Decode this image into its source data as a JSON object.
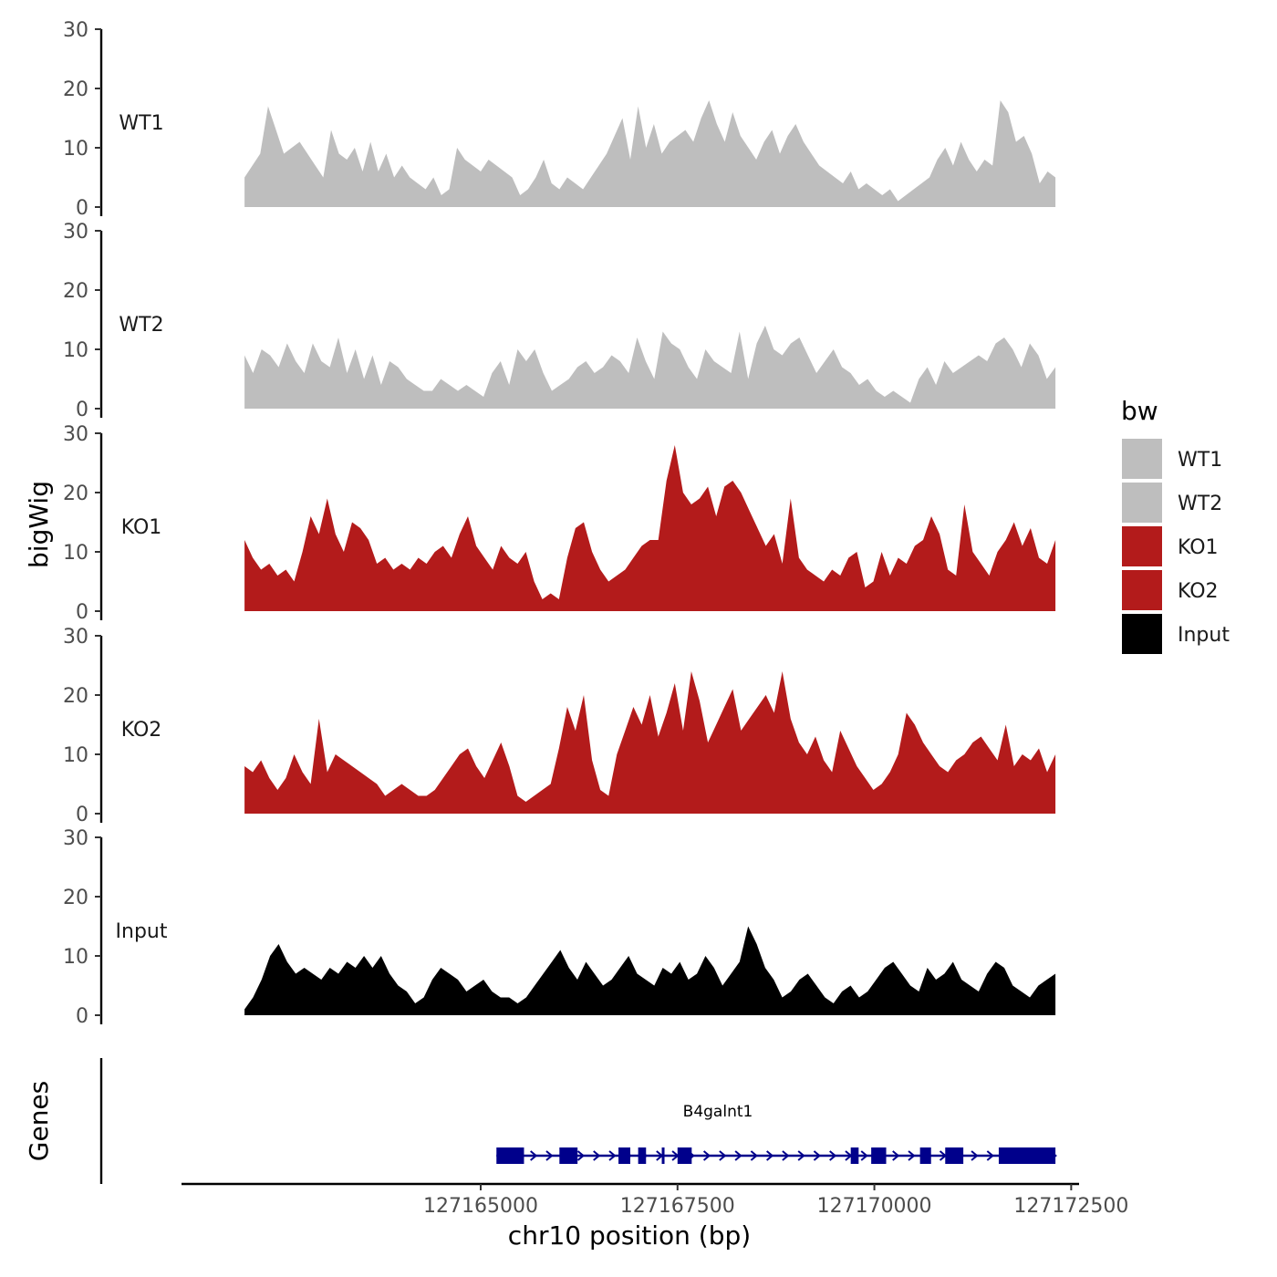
{
  "chart_data": {
    "type": "area",
    "title": "",
    "ylabel": "bigWig",
    "xlabel": "chr10 position (bp)",
    "xlim": [
      127161200,
      127172600
    ],
    "data_range": [
      127162000,
      127172300
    ],
    "ylim": [
      0,
      30
    ],
    "y_ticks": [
      "0",
      "10",
      "20",
      "30"
    ],
    "x_ticks": [
      {
        "value": 127165000,
        "label": "127165000"
      },
      {
        "value": 127167500,
        "label": "127167500"
      },
      {
        "value": 127170000,
        "label": "127170000"
      },
      {
        "value": 127172500,
        "label": "127172500"
      }
    ],
    "series": [
      {
        "name": "WT1",
        "color": "#bebebe",
        "values": [
          5,
          7,
          9,
          17,
          13,
          9,
          10,
          11,
          9,
          7,
          5,
          13,
          9,
          8,
          10,
          6,
          11,
          6,
          9,
          5,
          7,
          5,
          4,
          3,
          5,
          2,
          3,
          10,
          8,
          7,
          6,
          8,
          7,
          6,
          5,
          2,
          3,
          5,
          8,
          4,
          3,
          5,
          4,
          3,
          5,
          7,
          9,
          12,
          15,
          8,
          17,
          10,
          14,
          9,
          11,
          12,
          13,
          11,
          15,
          18,
          14,
          11,
          16,
          12,
          10,
          8,
          11,
          13,
          9,
          12,
          14,
          11,
          9,
          7,
          6,
          5,
          4,
          6,
          3,
          4,
          3,
          2,
          3,
          1,
          2,
          3,
          4,
          5,
          8,
          10,
          7,
          11,
          8,
          6,
          8,
          7,
          18,
          16,
          11,
          12,
          9,
          4,
          6,
          5
        ],
        "label": "WT1"
      },
      {
        "name": "WT2",
        "color": "#bebebe",
        "values": [
          9,
          6,
          10,
          9,
          7,
          11,
          8,
          6,
          11,
          8,
          7,
          12,
          6,
          10,
          5,
          9,
          4,
          8,
          7,
          5,
          4,
          3,
          3,
          5,
          4,
          3,
          4,
          3,
          2,
          6,
          8,
          4,
          10,
          8,
          10,
          6,
          3,
          4,
          5,
          7,
          8,
          6,
          7,
          9,
          8,
          6,
          12,
          8,
          5,
          13,
          11,
          10,
          7,
          5,
          10,
          8,
          7,
          6,
          13,
          5,
          11,
          14,
          10,
          9,
          11,
          12,
          9,
          6,
          8,
          10,
          7,
          6,
          4,
          5,
          3,
          2,
          3,
          2,
          1,
          5,
          7,
          4,
          8,
          6,
          7,
          8,
          9,
          8,
          11,
          12,
          10,
          7,
          11,
          9,
          5,
          7
        ],
        "label": "WT2"
      },
      {
        "name": "KO1",
        "color": "#b31b1b",
        "values": [
          12,
          9,
          7,
          8,
          6,
          7,
          5,
          10,
          16,
          13,
          19,
          13,
          10,
          15,
          14,
          12,
          8,
          9,
          7,
          8,
          7,
          9,
          8,
          10,
          11,
          9,
          13,
          16,
          11,
          9,
          7,
          11,
          9,
          8,
          10,
          5,
          2,
          3,
          2,
          9,
          14,
          15,
          10,
          7,
          5,
          6,
          7,
          9,
          11,
          12,
          12,
          22,
          28,
          20,
          18,
          19,
          21,
          16,
          21,
          22,
          20,
          17,
          14,
          11,
          13,
          8,
          19,
          9,
          7,
          6,
          5,
          7,
          6,
          9,
          10,
          4,
          5,
          10,
          6,
          9,
          8,
          11,
          12,
          16,
          13,
          7,
          6,
          18,
          10,
          8,
          6,
          10,
          12,
          15,
          11,
          14,
          9,
          8,
          12
        ],
        "label": "KO1"
      },
      {
        "name": "KO2",
        "color": "#b31b1b",
        "values": [
          8,
          7,
          9,
          6,
          4,
          6,
          10,
          7,
          5,
          16,
          7,
          10,
          9,
          8,
          7,
          6,
          5,
          3,
          4,
          5,
          4,
          3,
          3,
          4,
          6,
          8,
          10,
          11,
          8,
          6,
          9,
          12,
          8,
          3,
          2,
          3,
          4,
          5,
          11,
          18,
          14,
          20,
          9,
          4,
          3,
          10,
          14,
          18,
          15,
          20,
          13,
          17,
          22,
          14,
          24,
          19,
          12,
          15,
          18,
          21,
          14,
          16,
          18,
          20,
          17,
          24,
          16,
          12,
          10,
          13,
          9,
          7,
          14,
          11,
          8,
          6,
          4,
          5,
          7,
          10,
          17,
          15,
          12,
          10,
          8,
          7,
          9,
          10,
          12,
          13,
          11,
          9,
          15,
          8,
          10,
          9,
          11,
          7,
          10
        ],
        "label": "KO2"
      },
      {
        "name": "Input",
        "color": "#000000",
        "values": [
          1,
          3,
          6,
          10,
          12,
          9,
          7,
          8,
          7,
          6,
          8,
          7,
          9,
          8,
          10,
          8,
          10,
          7,
          5,
          4,
          2,
          3,
          6,
          8,
          7,
          6,
          4,
          5,
          6,
          4,
          3,
          3,
          2,
          3,
          5,
          7,
          9,
          11,
          8,
          6,
          9,
          7,
          5,
          6,
          8,
          10,
          7,
          6,
          5,
          8,
          7,
          9,
          6,
          7,
          10,
          8,
          5,
          7,
          9,
          15,
          12,
          8,
          6,
          3,
          4,
          6,
          7,
          5,
          3,
          2,
          4,
          5,
          3,
          4,
          6,
          8,
          9,
          7,
          5,
          4,
          8,
          6,
          7,
          9,
          6,
          5,
          4,
          7,
          9,
          8,
          5,
          4,
          3,
          5,
          6,
          7
        ],
        "label": "Input"
      }
    ],
    "gene": {
      "name": "B4galnt1",
      "start": 127165200,
      "end": 127172300,
      "strand": "+",
      "color": "#00008b",
      "exons": [
        {
          "start": 127165200,
          "end": 127165550
        },
        {
          "start": 127166000,
          "end": 127166230
        },
        {
          "start": 127166750,
          "end": 127166900
        },
        {
          "start": 127167000,
          "end": 127167100
        },
        {
          "start": 127167300,
          "end": 127167330
        },
        {
          "start": 127167500,
          "end": 127167680
        },
        {
          "start": 127169700,
          "end": 127169800
        },
        {
          "start": 127169960,
          "end": 127170150
        },
        {
          "start": 127170580,
          "end": 127170720
        },
        {
          "start": 127170900,
          "end": 127171130
        },
        {
          "start": 127171580,
          "end": 127172300
        }
      ]
    }
  },
  "labels": {
    "genes_axis": "Genes",
    "legend_title": "bw"
  }
}
